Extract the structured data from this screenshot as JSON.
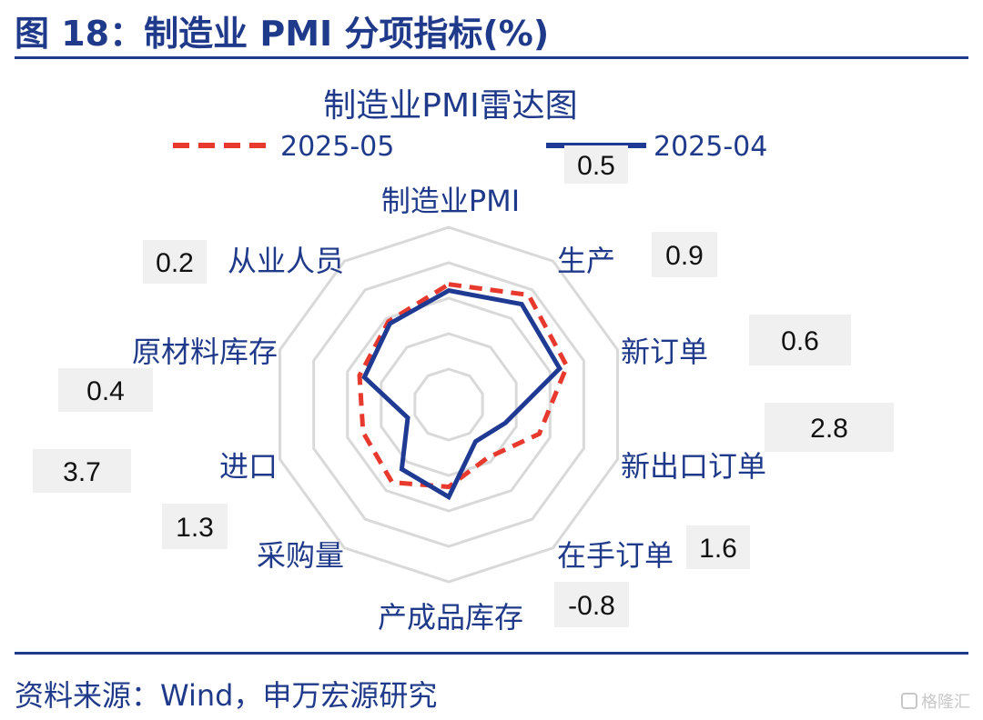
{
  "header": {
    "title": "图 18：制造业 PMI 分项指标(%)"
  },
  "footer": {
    "source": "资料来源：Wind，申万宏源研究"
  },
  "watermark": {
    "text": "格隆汇"
  },
  "colors": {
    "series_may": "#e8392e",
    "series_apr": "#1f3a93",
    "label": "#1f3a8a",
    "grid": "#d9d9d9",
    "box": "#f0f0f0"
  },
  "chart_data": {
    "type": "radar",
    "title": "制造业PMI雷达图",
    "categories": [
      "制造业PMI",
      "生产",
      "新订单",
      "新出口订单",
      "在手订单",
      "产成品库存",
      "采购量",
      "进口",
      "原材料库存",
      "从业人员"
    ],
    "series": [
      {
        "name": "2025-05",
        "values": [
          49.5,
          50.7,
          49.8,
          47.5,
          45.2,
          46.5,
          47.6,
          47.1,
          47.4,
          48.1
        ]
      },
      {
        "name": "2025-04",
        "values": [
          49.0,
          49.8,
          49.2,
          44.7,
          43.6,
          47.3,
          46.3,
          43.4,
          47.0,
          47.9
        ]
      }
    ],
    "change_labels": [
      "0.5",
      "0.9",
      "0.6",
      "2.8",
      "1.6",
      "-0.8",
      "1.3",
      "3.7",
      "0.4",
      "0.2"
    ],
    "rlim": [
      40,
      54
    ],
    "rings": 5,
    "grid": true,
    "legend_position": "top"
  }
}
